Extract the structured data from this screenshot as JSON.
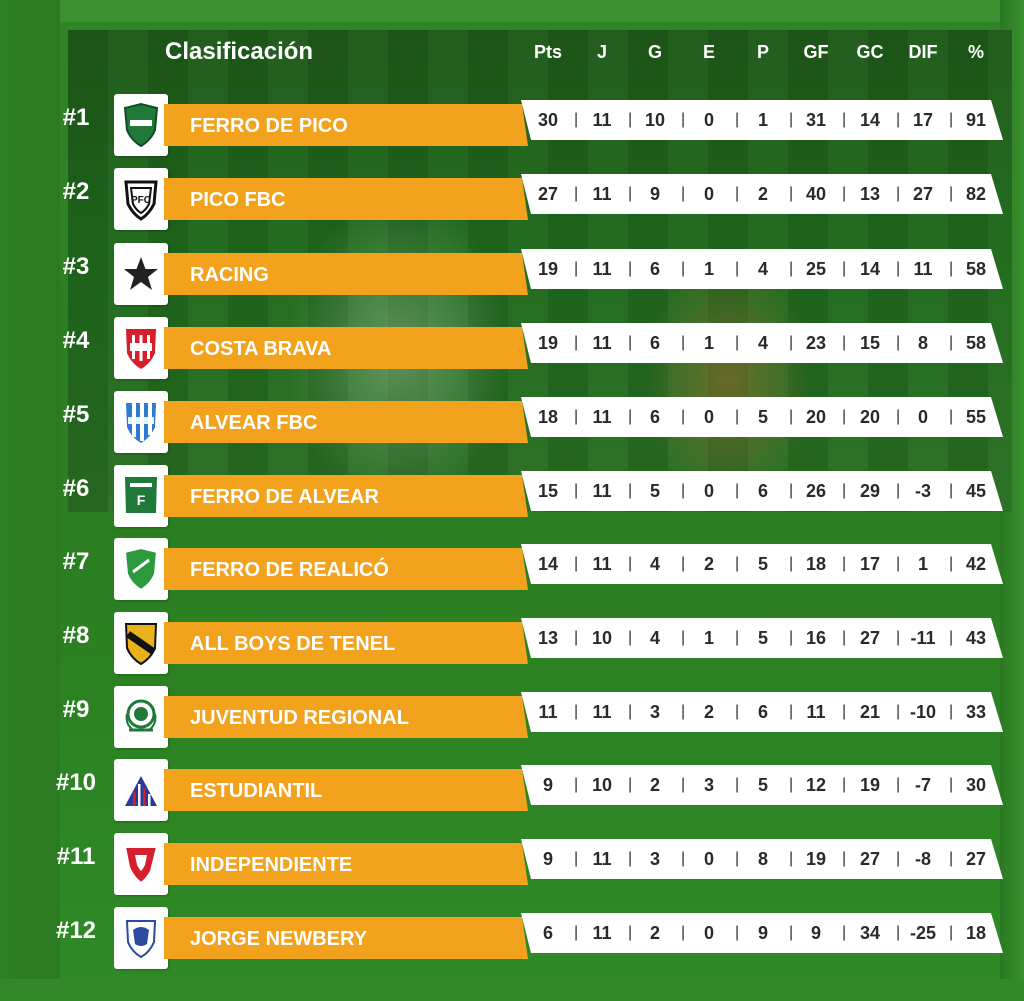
{
  "title": "Clasificación",
  "columns": [
    "Pts",
    "J",
    "G",
    "E",
    "P",
    "GF",
    "GC",
    "DIF",
    "%"
  ],
  "rows": [
    {
      "rank": "#1",
      "team": "FERRO DE PICO",
      "shield": "ferro-de-pico-shield-icon",
      "stats": [
        "30",
        "11",
        "10",
        "0",
        "1",
        "31",
        "14",
        "17",
        "91"
      ]
    },
    {
      "rank": "#2",
      "team": "PICO FBC",
      "shield": "pico-fbc-shield-icon",
      "stats": [
        "27",
        "11",
        "9",
        "0",
        "2",
        "40",
        "13",
        "27",
        "82"
      ]
    },
    {
      "rank": "#3",
      "team": "RACING",
      "shield": "racing-star-icon",
      "stats": [
        "19",
        "11",
        "6",
        "1",
        "4",
        "25",
        "14",
        "11",
        "58"
      ]
    },
    {
      "rank": "#4",
      "team": "COSTA BRAVA",
      "shield": "costa-brava-shield-icon",
      "stats": [
        "19",
        "11",
        "6",
        "1",
        "4",
        "23",
        "15",
        "8",
        "58"
      ]
    },
    {
      "rank": "#5",
      "team": "ALVEAR FBC",
      "shield": "alvear-fbc-shield-icon",
      "stats": [
        "18",
        "11",
        "6",
        "0",
        "5",
        "20",
        "20",
        "0",
        "55"
      ]
    },
    {
      "rank": "#6",
      "team": "FERRO DE ALVEAR",
      "shield": "ferro-de-alvear-shield-icon",
      "stats": [
        "15",
        "11",
        "5",
        "0",
        "6",
        "26",
        "29",
        "-3",
        "45"
      ]
    },
    {
      "rank": "#7",
      "team": "FERRO DE REALICÓ",
      "shield": "ferro-de-realico-shield-icon",
      "stats": [
        "14",
        "11",
        "4",
        "2",
        "5",
        "18",
        "17",
        "1",
        "42"
      ]
    },
    {
      "rank": "#8",
      "team": "ALL BOYS DE TENEL",
      "shield": "all-boys-de-tenel-shield-icon",
      "stats": [
        "13",
        "10",
        "4",
        "1",
        "5",
        "16",
        "27",
        "-11",
        "43"
      ]
    },
    {
      "rank": "#9",
      "team": "JUVENTUD REGIONAL",
      "shield": "juventud-regional-shield-icon",
      "stats": [
        "11",
        "11",
        "3",
        "2",
        "6",
        "11",
        "21",
        "-10",
        "33"
      ]
    },
    {
      "rank": "#10",
      "team": "ESTUDIANTIL",
      "shield": "estudiantil-shield-icon",
      "stats": [
        "9",
        "10",
        "2",
        "3",
        "5",
        "12",
        "19",
        "-7",
        "30"
      ]
    },
    {
      "rank": "#11",
      "team": "INDEPENDIENTE",
      "shield": "independiente-shield-icon",
      "stats": [
        "9",
        "11",
        "3",
        "0",
        "8",
        "19",
        "27",
        "-8",
        "27"
      ]
    },
    {
      "rank": "#12",
      "team": "JORGE NEWBERY",
      "shield": "jorge-newbery-shield-icon",
      "stats": [
        "6",
        "11",
        "2",
        "0",
        "9",
        "9",
        "34",
        "-25",
        "18"
      ]
    }
  ],
  "colors": {
    "background": "#2b7a22",
    "team_bar": "#f2a21c",
    "stats_bar": "#ffffff",
    "text_light": "#ffffff",
    "text_dark": "#2a2a2a"
  }
}
